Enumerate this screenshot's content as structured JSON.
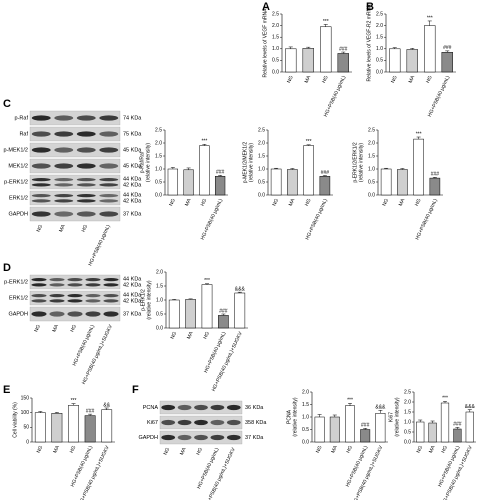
{
  "panel_labels": [
    "A",
    "B",
    "C",
    "D",
    "E",
    "F"
  ],
  "blots": [
    {
      "rows": [
        {
          "label": "p-Raf",
          "sizes": [
            "74 KDa"
          ]
        },
        {
          "label": "Raf",
          "sizes": [
            "75 KDa"
          ]
        },
        {
          "label": "p-MEK1/2",
          "sizes": [
            "45 KDa"
          ]
        },
        {
          "label": "MEK1/2",
          "sizes": [
            "45 KDa"
          ]
        },
        {
          "label": "p-ERK1/2",
          "sizes": [
            "44 KDa",
            "42 KDa"
          ]
        },
        {
          "label": "ERK1/2",
          "sizes": [
            "44 KDa",
            "42 KDa"
          ]
        },
        {
          "label": "GAPDH",
          "sizes": [
            "37 KDa"
          ]
        }
      ],
      "lanes": [
        "NG",
        "MA",
        "HG",
        "HG+PSB(40 μg/mL)"
      ]
    },
    {
      "rows": [
        {
          "label": "p-ERK1/2",
          "sizes": [
            "44 KDa",
            "42 KDa"
          ]
        },
        {
          "label": "ERK1/2",
          "sizes": [
            "44 KDa",
            "42 KDa"
          ]
        },
        {
          "label": "GAPDH",
          "sizes": [
            "37 KDa"
          ]
        }
      ],
      "lanes": [
        "NG",
        "MA",
        "HG",
        "HG+PSB(40 μg/mL)",
        "HG+PSB(40 μg/mL)+SUGKV"
      ]
    },
    {
      "rows": [
        {
          "label": "PCNA",
          "sizes": [
            "36 KDa"
          ]
        },
        {
          "label": "Ki67",
          "sizes": [
            "358 KDa"
          ]
        },
        {
          "label": "GAPDH",
          "sizes": [
            "37 KDa"
          ]
        }
      ],
      "lanes": [
        "NG",
        "MA",
        "HG",
        "HG+PSB(40 μg/mL)",
        "HG+PSB(40 μg/mL)+SUGKV"
      ]
    }
  ],
  "chart_data": [
    {
      "type": "bar",
      "y_label": [
        "Relative levels of VEGF mRNA"
      ],
      "categories": [
        "NG",
        "MA",
        "HG",
        "HG+PSB(40 μg/mL)"
      ],
      "values": [
        1.0,
        1.02,
        1.95,
        0.8
      ],
      "errors": [
        0.08,
        0.05,
        0.1,
        0.06
      ],
      "annotations": [
        null,
        null,
        "***",
        "###"
      ],
      "colors": [
        "#ffffff",
        "#cfcfcf",
        "#ffffff",
        "#8a8a8a"
      ],
      "ylim": [
        0,
        2.5
      ],
      "yticks": [
        {
          "value": 0,
          "label": "0.0"
        },
        0.5,
        {
          "value": 1,
          "label": "1.0"
        },
        1.5,
        {
          "value": 2,
          "label": "2.0"
        },
        2.5
      ]
    },
    {
      "type": "bar",
      "y_label": [
        "Relative levels of VEGF-R2 mRNA"
      ],
      "categories": [
        "NG",
        "MA",
        "HG",
        "HG+PSB(40 μg/mL)"
      ],
      "values": [
        1.0,
        0.97,
        2.0,
        0.85
      ],
      "errors": [
        0.05,
        0.05,
        0.2,
        0.06
      ],
      "annotations": [
        null,
        null,
        "***",
        "###"
      ],
      "colors": [
        "#ffffff",
        "#cfcfcf",
        "#ffffff",
        "#8a8a8a"
      ],
      "ylim": [
        0,
        2.5
      ],
      "yticks": [
        {
          "value": 0,
          "label": "0.0"
        },
        0.5,
        {
          "value": 1,
          "label": "1.0"
        },
        1.5,
        {
          "value": 2,
          "label": "2.0"
        },
        2.5
      ]
    },
    {
      "type": "bar",
      "y_label": [
        "p-Raf/Raf",
        "(relative intensity)"
      ],
      "categories": [
        "NG",
        "MA",
        "HG",
        "HG+PSB(40 μg/mL)"
      ],
      "values": [
        1.0,
        0.97,
        1.9,
        0.72
      ],
      "errors": [
        0.06,
        0.07,
        0.05,
        0.04
      ],
      "annotations": [
        null,
        null,
        "***",
        "###"
      ],
      "colors": [
        "#ffffff",
        "#cfcfcf",
        "#ffffff",
        "#8a8a8a"
      ],
      "ylim": [
        0,
        2.5
      ],
      "yticks": [
        {
          "value": 0,
          "label": "0.0"
        },
        0.5,
        {
          "value": 1,
          "label": "1.0"
        },
        1.5,
        {
          "value": 2,
          "label": "2.0"
        },
        2.5
      ]
    },
    {
      "type": "bar",
      "y_label": [
        "p-MEK1/2/MEK1/2",
        "(relative intensity)"
      ],
      "categories": [
        "NG",
        "MA",
        "HG",
        "HG+PSB(40 μg/mL)"
      ],
      "values": [
        1.0,
        0.98,
        1.9,
        0.72
      ],
      "errors": [
        0.03,
        0.04,
        0.03,
        0.03
      ],
      "annotations": [
        null,
        null,
        "***",
        "###"
      ],
      "colors": [
        "#ffffff",
        "#cfcfcf",
        "#ffffff",
        "#8a8a8a"
      ],
      "ylim": [
        0,
        2.5
      ],
      "yticks": [
        {
          "value": 0,
          "label": "0.0"
        },
        0.5,
        {
          "value": 1,
          "label": "1.0"
        },
        1.5,
        {
          "value": 2,
          "label": "2.0"
        },
        2.5
      ]
    },
    {
      "type": "bar",
      "y_label": [
        "p-ERK1/2/ERK1/2",
        "(relative intensity)"
      ],
      "categories": [
        "NG",
        "MA",
        "HG",
        "HG+PSB(40 μg/mL)"
      ],
      "values": [
        1.0,
        0.98,
        2.15,
        0.65
      ],
      "errors": [
        0.03,
        0.04,
        0.08,
        0.03
      ],
      "annotations": [
        null,
        null,
        "***",
        "###"
      ],
      "colors": [
        "#ffffff",
        "#cfcfcf",
        "#ffffff",
        "#8a8a8a"
      ],
      "ylim": [
        0,
        2.5
      ],
      "yticks": [
        {
          "value": 0,
          "label": "0.0"
        },
        0.5,
        {
          "value": 1,
          "label": "1.0"
        },
        1.5,
        {
          "value": 2,
          "label": "2.0"
        },
        2.5
      ]
    },
    {
      "type": "bar",
      "y_label": [
        "p-ERK1/2",
        "(relative intensity)"
      ],
      "categories": [
        "NG",
        "MA",
        "HG",
        "HG+PSB(40 μg/mL)",
        "HG+PSB(40 μg/mL)+SUGKV"
      ],
      "values": [
        1.0,
        1.02,
        1.55,
        0.45,
        1.25
      ],
      "errors": [
        0.02,
        0.02,
        0.03,
        0.05,
        0.03
      ],
      "annotations": [
        null,
        null,
        "***",
        "###",
        "&&&"
      ],
      "colors": [
        "#ffffff",
        "#cfcfcf",
        "#ffffff",
        "#8a8a8a",
        "#ffffff"
      ],
      "ylim": [
        0,
        2.0
      ],
      "yticks": [
        {
          "value": 0,
          "label": "0.0"
        },
        0.5,
        {
          "value": 1,
          "label": "1.0"
        },
        1.5,
        {
          "value": 2,
          "label": "2.0"
        }
      ]
    },
    {
      "type": "bar",
      "y_label": [
        "Cell viability (%)"
      ],
      "categories": [
        "NG",
        "MA",
        "HG",
        "HG+PSB(40 μg/mL)",
        "HG+PSB(40 μg/mL)+SUGKV"
      ],
      "values": [
        100,
        98,
        125,
        90,
        110
      ],
      "errors": [
        4,
        3,
        6,
        5,
        6
      ],
      "annotations": [
        null,
        null,
        "***",
        "###",
        "&&"
      ],
      "colors": [
        "#ffffff",
        "#cfcfcf",
        "#ffffff",
        "#8a8a8a",
        "#ffffff"
      ],
      "ylim": [
        0,
        150
      ],
      "yticks": [
        0,
        50,
        100,
        150
      ]
    },
    {
      "type": "bar",
      "y_label": [
        "PCNA",
        "(relative intensity)"
      ],
      "categories": [
        "NG",
        "MA",
        "HG",
        "HG+PSB(40 μg/mL)",
        "HG+PSB(40 μg/mL)+SUGKV"
      ],
      "values": [
        1.0,
        1.0,
        1.45,
        0.5,
        1.15
      ],
      "errors": [
        0.1,
        0.08,
        0.1,
        0.05,
        0.12
      ],
      "annotations": [
        null,
        null,
        "***",
        "###",
        "&&&"
      ],
      "colors": [
        "#ffffff",
        "#cfcfcf",
        "#ffffff",
        "#8a8a8a",
        "#ffffff"
      ],
      "ylim": [
        0,
        2.0
      ],
      "yticks": [
        {
          "value": 0,
          "label": "0.0"
        },
        0.5,
        {
          "value": 1,
          "label": "1.0"
        },
        1.5,
        {
          "value": 2,
          "label": "2.0"
        }
      ]
    },
    {
      "type": "bar",
      "y_label": [
        "Ki67",
        "(relative intensity)"
      ],
      "categories": [
        "NG",
        "MA",
        "HG",
        "HG+PSB(40 μg/mL)",
        "HG+PSB(40 μg/mL)+SUGKV"
      ],
      "values": [
        1.0,
        0.95,
        1.95,
        0.65,
        1.5
      ],
      "errors": [
        0.1,
        0.1,
        0.08,
        0.08,
        0.12
      ],
      "annotations": [
        null,
        null,
        "***",
        "###",
        "&&&"
      ],
      "colors": [
        "#ffffff",
        "#cfcfcf",
        "#ffffff",
        "#8a8a8a",
        "#ffffff"
      ],
      "ylim": [
        0,
        2.5
      ],
      "yticks": [
        {
          "value": 0,
          "label": "0.0"
        },
        0.5,
        {
          "value": 1,
          "label": "1.0"
        },
        1.5,
        {
          "value": 2,
          "label": "2.0"
        },
        2.5
      ]
    }
  ]
}
